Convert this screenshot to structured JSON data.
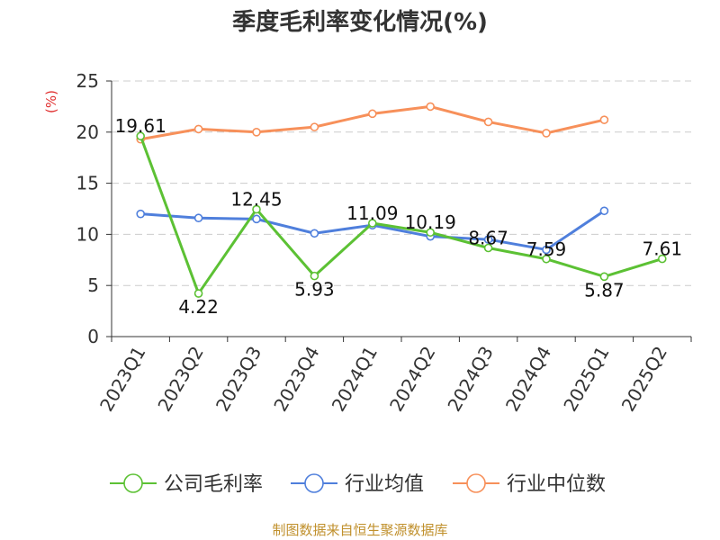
{
  "chart_data": {
    "type": "line",
    "title": "季度毛利率变化情况(%)",
    "ylabel": "(%)",
    "ylim": [
      0,
      25
    ],
    "yticks": [
      0,
      5,
      10,
      15,
      20,
      25
    ],
    "grid": true,
    "legend_position": "bottom",
    "categories": [
      "2023Q1",
      "2023Q2",
      "2023Q3",
      "2023Q4",
      "2024Q1",
      "2024Q2",
      "2024Q3",
      "2024Q4",
      "2025Q1",
      "2025Q2"
    ],
    "series": [
      {
        "name": "公司毛利率",
        "color": "#5cc134",
        "values": [
          19.61,
          4.22,
          12.45,
          5.93,
          11.09,
          10.19,
          8.67,
          7.59,
          5.87,
          7.61
        ],
        "labels": [
          "19.61",
          "4.22",
          "12.45",
          "5.93",
          "11.09",
          "10.19",
          "8.67",
          "7.59",
          "5.87",
          "7.61"
        ]
      },
      {
        "name": "行业均值",
        "color": "#4f7fdc",
        "values": [
          12.0,
          11.6,
          11.5,
          10.1,
          10.9,
          9.8,
          9.5,
          8.5,
          12.3,
          null
        ]
      },
      {
        "name": "行业中位数",
        "color": "#f7905a",
        "values": [
          19.3,
          20.3,
          20.0,
          20.5,
          21.8,
          22.5,
          21.0,
          19.9,
          21.2,
          null
        ]
      }
    ]
  },
  "source": "制图数据来自恒生聚源数据库"
}
